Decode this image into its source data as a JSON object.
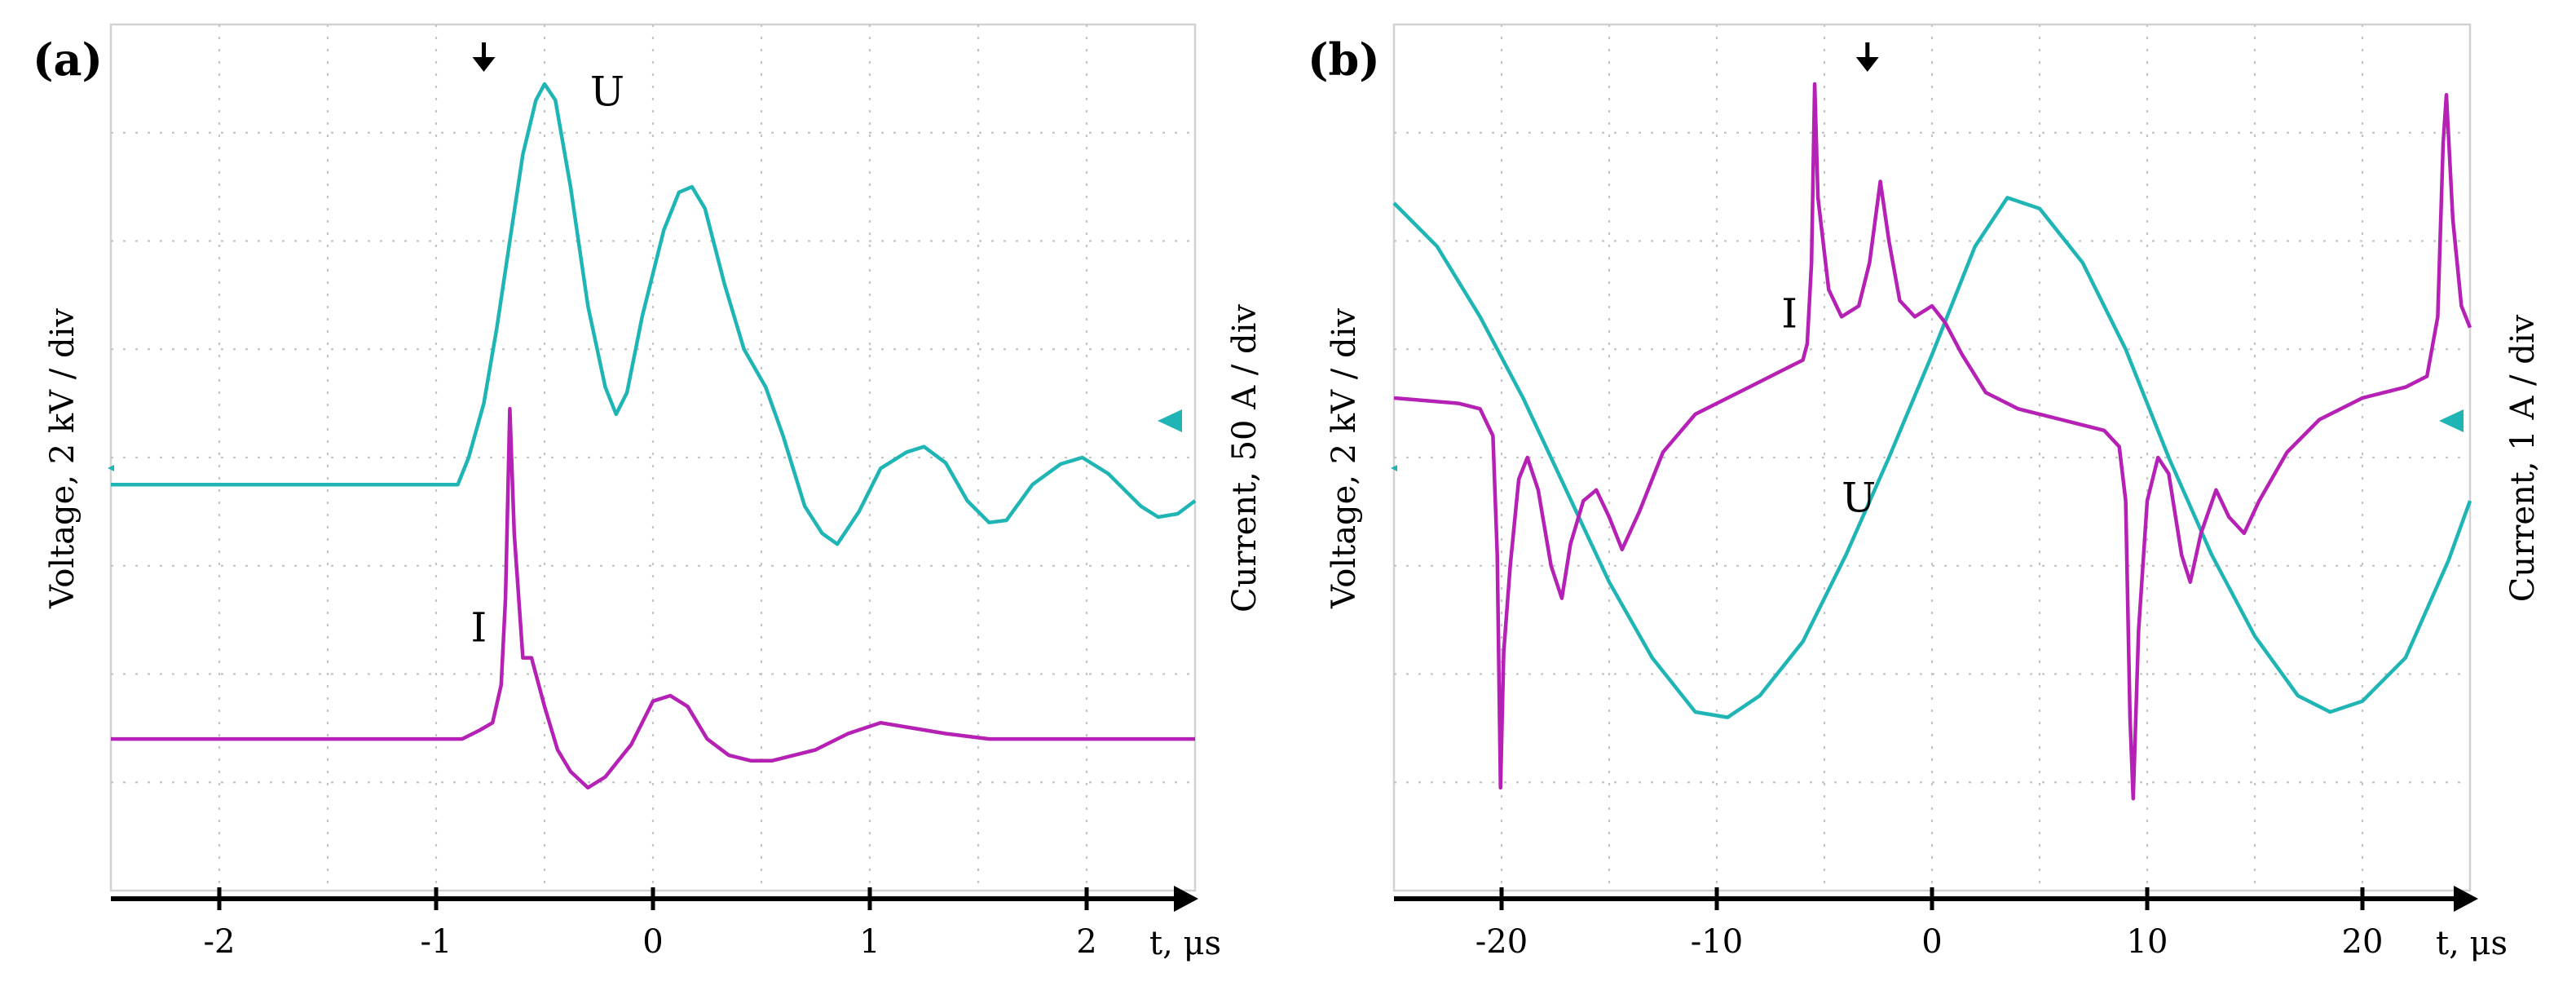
{
  "chart_data": [
    {
      "panel_label": "(a)",
      "type": "line",
      "x_unit_label": "t, μs",
      "ylabel_left": "Voltage, 2 kV / div",
      "ylabel_right": "Current, 50 A / div",
      "xlim": [
        -2.5,
        2.5
      ],
      "ylim_div": [
        -4,
        4
      ],
      "x_ticks": [
        -2,
        -1,
        0,
        1,
        2
      ],
      "x_tick_labels": [
        "-2",
        "-1",
        "0",
        "1",
        "2"
      ],
      "grid": true,
      "trigger_marker_x": -0.78,
      "colors": {
        "voltage": "#20b5b5",
        "current": "#b521b5"
      },
      "series": [
        {
          "name": "U",
          "trace_label": "U",
          "label_at": [
            -0.29,
            3.25
          ],
          "points": [
            [
              -2.5,
              -0.25
            ],
            [
              -0.9,
              -0.25
            ],
            [
              -0.85,
              0.0
            ],
            [
              -0.78,
              0.5
            ],
            [
              -0.72,
              1.2
            ],
            [
              -0.66,
              2.0
            ],
            [
              -0.6,
              2.8
            ],
            [
              -0.54,
              3.3
            ],
            [
              -0.5,
              3.45
            ],
            [
              -0.45,
              3.3
            ],
            [
              -0.38,
              2.5
            ],
            [
              -0.3,
              1.4
            ],
            [
              -0.22,
              0.65
            ],
            [
              -0.17,
              0.4
            ],
            [
              -0.12,
              0.6
            ],
            [
              -0.05,
              1.3
            ],
            [
              0.05,
              2.1
            ],
            [
              0.12,
              2.45
            ],
            [
              0.18,
              2.5
            ],
            [
              0.24,
              2.3
            ],
            [
              0.33,
              1.6
            ],
            [
              0.42,
              1.0
            ],
            [
              0.52,
              0.65
            ],
            [
              0.6,
              0.2
            ],
            [
              0.7,
              -0.45
            ],
            [
              0.78,
              -0.7
            ],
            [
              0.85,
              -0.8
            ],
            [
              0.95,
              -0.5
            ],
            [
              1.05,
              -0.1
            ],
            [
              1.17,
              0.05
            ],
            [
              1.25,
              0.1
            ],
            [
              1.35,
              -0.05
            ],
            [
              1.45,
              -0.4
            ],
            [
              1.55,
              -0.6
            ],
            [
              1.63,
              -0.58
            ],
            [
              1.75,
              -0.25
            ],
            [
              1.88,
              -0.06
            ],
            [
              1.98,
              0.0
            ],
            [
              2.1,
              -0.15
            ],
            [
              2.25,
              -0.45
            ],
            [
              2.33,
              -0.55
            ],
            [
              2.42,
              -0.52
            ],
            [
              2.5,
              -0.4
            ]
          ]
        },
        {
          "name": "I",
          "trace_label": "I",
          "label_at": [
            -0.84,
            -1.7
          ],
          "points": [
            [
              -2.5,
              -2.6
            ],
            [
              -0.88,
              -2.6
            ],
            [
              -0.8,
              -2.52
            ],
            [
              -0.74,
              -2.45
            ],
            [
              -0.7,
              -2.1
            ],
            [
              -0.68,
              -1.3
            ],
            [
              -0.66,
              0.45
            ],
            [
              -0.64,
              -0.7
            ],
            [
              -0.6,
              -1.85
            ],
            [
              -0.56,
              -1.85
            ],
            [
              -0.5,
              -2.3
            ],
            [
              -0.44,
              -2.7
            ],
            [
              -0.38,
              -2.9
            ],
            [
              -0.3,
              -3.05
            ],
            [
              -0.22,
              -2.95
            ],
            [
              -0.1,
              -2.65
            ],
            [
              0.0,
              -2.25
            ],
            [
              0.08,
              -2.2
            ],
            [
              0.16,
              -2.3
            ],
            [
              0.25,
              -2.6
            ],
            [
              0.35,
              -2.75
            ],
            [
              0.45,
              -2.8
            ],
            [
              0.55,
              -2.8
            ],
            [
              0.65,
              -2.75
            ],
            [
              0.75,
              -2.7
            ],
            [
              0.9,
              -2.55
            ],
            [
              1.05,
              -2.45
            ],
            [
              1.2,
              -2.5
            ],
            [
              1.35,
              -2.55
            ],
            [
              1.55,
              -2.6
            ],
            [
              1.75,
              -2.6
            ],
            [
              2.0,
              -2.6
            ],
            [
              2.5,
              -2.6
            ]
          ]
        }
      ]
    },
    {
      "panel_label": "(b)",
      "type": "line",
      "x_unit_label": "t, μs",
      "ylabel_left": "Voltage, 2 kV / div",
      "ylabel_right": "Current, 1 A / div",
      "xlim": [
        -25,
        25
      ],
      "ylim_div": [
        -4,
        4
      ],
      "x_ticks": [
        -20,
        -10,
        0,
        10,
        20
      ],
      "x_tick_labels": [
        "-20",
        "-10",
        "0",
        "10",
        "20"
      ],
      "grid": true,
      "trigger_marker_x": -3,
      "colors": {
        "voltage": "#20b5b5",
        "current": "#b521b5"
      },
      "series": [
        {
          "name": "U",
          "trace_label": "U",
          "label_at": [
            -4.2,
            -0.5
          ],
          "points": [
            [
              -25,
              2.35
            ],
            [
              -23,
              1.95
            ],
            [
              -21,
              1.3
            ],
            [
              -19,
              0.55
            ],
            [
              -17,
              -0.3
            ],
            [
              -15,
              -1.15
            ],
            [
              -13,
              -1.85
            ],
            [
              -11,
              -2.35
            ],
            [
              -9.5,
              -2.4
            ],
            [
              -8,
              -2.2
            ],
            [
              -6,
              -1.7
            ],
            [
              -4,
              -0.9
            ],
            [
              -2,
              0.0
            ],
            [
              0,
              0.95
            ],
            [
              2,
              1.95
            ],
            [
              3.5,
              2.4
            ],
            [
              5,
              2.3
            ],
            [
              7,
              1.8
            ],
            [
              9,
              1.0
            ],
            [
              11,
              0.0
            ],
            [
              13,
              -0.9
            ],
            [
              15,
              -1.65
            ],
            [
              17,
              -2.2
            ],
            [
              18.5,
              -2.35
            ],
            [
              20,
              -2.25
            ],
            [
              22,
              -1.85
            ],
            [
              24,
              -0.95
            ],
            [
              25,
              -0.4
            ]
          ]
        },
        {
          "name": "I",
          "trace_label": "I",
          "label_at": [
            -7.0,
            1.2
          ],
          "points": [
            [
              -25,
              0.55
            ],
            [
              -22,
              0.5
            ],
            [
              -21,
              0.45
            ],
            [
              -20.4,
              0.2
            ],
            [
              -20.2,
              -0.9
            ],
            [
              -20.05,
              -3.05
            ],
            [
              -19.9,
              -1.8
            ],
            [
              -19.6,
              -1.0
            ],
            [
              -19.2,
              -0.2
            ],
            [
              -18.8,
              0.0
            ],
            [
              -18.3,
              -0.3
            ],
            [
              -17.7,
              -1.0
            ],
            [
              -17.2,
              -1.3
            ],
            [
              -16.8,
              -0.8
            ],
            [
              -16.2,
              -0.4
            ],
            [
              -15.6,
              -0.3
            ],
            [
              -15,
              -0.55
            ],
            [
              -14.4,
              -0.85
            ],
            [
              -13.6,
              -0.5
            ],
            [
              -12.5,
              0.05
            ],
            [
              -11,
              0.4
            ],
            [
              -9,
              0.6
            ],
            [
              -7,
              0.8
            ],
            [
              -6,
              0.9
            ],
            [
              -5.8,
              1.05
            ],
            [
              -5.6,
              1.8
            ],
            [
              -5.45,
              3.45
            ],
            [
              -5.3,
              2.4
            ],
            [
              -4.8,
              1.55
            ],
            [
              -4.2,
              1.3
            ],
            [
              -3.4,
              1.4
            ],
            [
              -2.9,
              1.8
            ],
            [
              -2.4,
              2.55
            ],
            [
              -2.0,
              2.0
            ],
            [
              -1.5,
              1.45
            ],
            [
              -0.8,
              1.3
            ],
            [
              0,
              1.4
            ],
            [
              0.6,
              1.25
            ],
            [
              1.4,
              0.95
            ],
            [
              2.5,
              0.6
            ],
            [
              4,
              0.45
            ],
            [
              6,
              0.35
            ],
            [
              8,
              0.25
            ],
            [
              8.7,
              0.1
            ],
            [
              9.0,
              -0.4
            ],
            [
              9.2,
              -2.4
            ],
            [
              9.35,
              -3.15
            ],
            [
              9.6,
              -1.6
            ],
            [
              10,
              -0.4
            ],
            [
              10.5,
              0.0
            ],
            [
              11,
              -0.15
            ],
            [
              11.6,
              -0.9
            ],
            [
              12,
              -1.15
            ],
            [
              12.5,
              -0.7
            ],
            [
              13.2,
              -0.3
            ],
            [
              13.8,
              -0.55
            ],
            [
              14.5,
              -0.7
            ],
            [
              15.2,
              -0.4
            ],
            [
              16.5,
              0.05
            ],
            [
              18,
              0.35
            ],
            [
              20,
              0.55
            ],
            [
              22,
              0.65
            ],
            [
              23,
              0.75
            ],
            [
              23.5,
              1.3
            ],
            [
              23.75,
              2.9
            ],
            [
              23.9,
              3.35
            ],
            [
              24.2,
              2.2
            ],
            [
              24.6,
              1.4
            ],
            [
              25,
              1.2
            ]
          ]
        }
      ]
    }
  ]
}
